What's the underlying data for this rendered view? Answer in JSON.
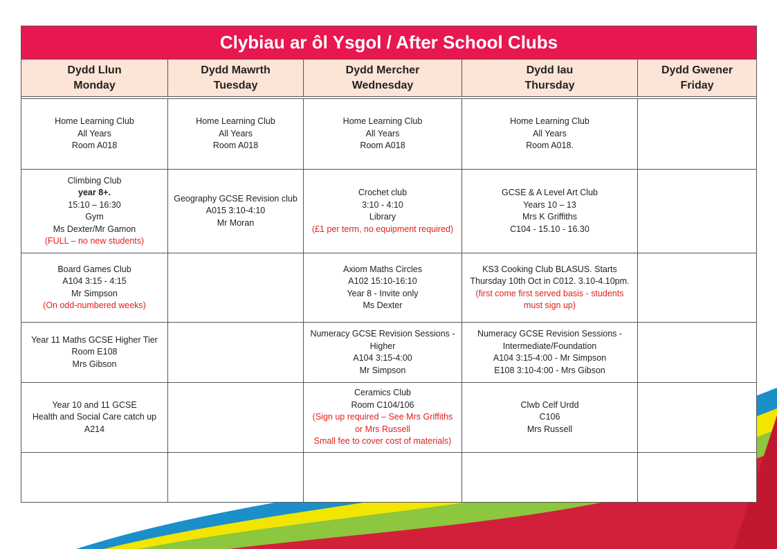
{
  "title": "Clybiau ar ôl Ysgol / After School Clubs",
  "table": {
    "columns": [
      [
        "Dydd Llun",
        "Monday"
      ],
      [
        "Dydd Mawrth",
        "Tuesday"
      ],
      [
        "Dydd Mercher",
        "Wednesday"
      ],
      [
        "Dydd Iau",
        "Thursday"
      ],
      [
        "Dydd Gwener",
        "Friday"
      ]
    ],
    "rows": [
      [
        {
          "lines": [
            "Home Learning Club",
            "All Years",
            "Room A018"
          ]
        },
        {
          "lines": [
            "Home Learning Club",
            "All Years",
            "Room A018"
          ]
        },
        {
          "lines": [
            "Home Learning Club",
            "All Years",
            "Room A018"
          ]
        },
        {
          "lines": [
            "Home Learning Club",
            "All Years",
            "Room A018."
          ]
        },
        null
      ],
      [
        {
          "lines": [
            "Climbing Club",
            {
              "text": "year 8+.",
              "bold": true
            },
            "15:10  – 16:30",
            "Gym",
            "Ms Dexter/Mr Gamon"
          ],
          "notes": [
            "(FULL – no new students)"
          ]
        },
        {
          "lines": [
            "Geography GCSE Revision club",
            "A015 3:10-4:10",
            "Mr Moran"
          ]
        },
        {
          "lines": [
            "Crochet club",
            "3:10  - 4:10",
            "Library"
          ],
          "notes": [
            "(£1 per term, no equipment required)"
          ]
        },
        {
          "lines": [
            "GCSE & A Level Art Club",
            "Years 10 – 13",
            "Mrs K Griffiths",
            "C104  - 15.10 - 16.30"
          ]
        },
        null
      ],
      [
        {
          "lines": [
            "Board Games Club",
            "A104 3:15 - 4:15",
            "Mr Simpson"
          ],
          "notes": [
            "(On odd-numbered weeks)"
          ]
        },
        null,
        {
          "lines": [
            "Axiom Maths Circles",
            "A102 15:10-16:10",
            "Year 8 - Invite only",
            "Ms Dexter"
          ]
        },
        {
          "lines": [
            "KS3 Cooking Club BLASUS. Starts Thursday 10th Oct in C012. 3.10-4.10pm."
          ],
          "notes": [
            "(first come first served basis - students must sign up)"
          ]
        },
        null
      ],
      [
        {
          "lines": [
            "Year 11 Maths GCSE Higher Tier",
            "Room E108",
            "Mrs Gibson"
          ]
        },
        null,
        {
          "lines": [
            "Numeracy GCSE Revision Sessions - Higher",
            "A104 3:15-4:00",
            "Mr Simpson"
          ]
        },
        {
          "lines": [
            "Numeracy GCSE Revision Sessions - Intermediate/Foundation",
            "A104 3:15-4:00  - Mr Simpson",
            "E108  3:10-4:00  - Mrs Gibson"
          ]
        },
        null
      ],
      [
        {
          "lines": [
            "Year 10 and 11 GCSE",
            "Health and Social Care catch up",
            "A214"
          ]
        },
        null,
        {
          "lines": [
            "Ceramics Club",
            "Room C104/106"
          ],
          "notes": [
            "(Sign up required – See Mrs Griffiths or Mrs Russell",
            "Small fee to cover cost of materials)"
          ]
        },
        {
          "lines": [
            "Clwb Celf Urdd",
            "C106",
            "Mrs Russell"
          ]
        },
        null
      ],
      [
        null,
        null,
        null,
        null,
        null
      ]
    ]
  }
}
